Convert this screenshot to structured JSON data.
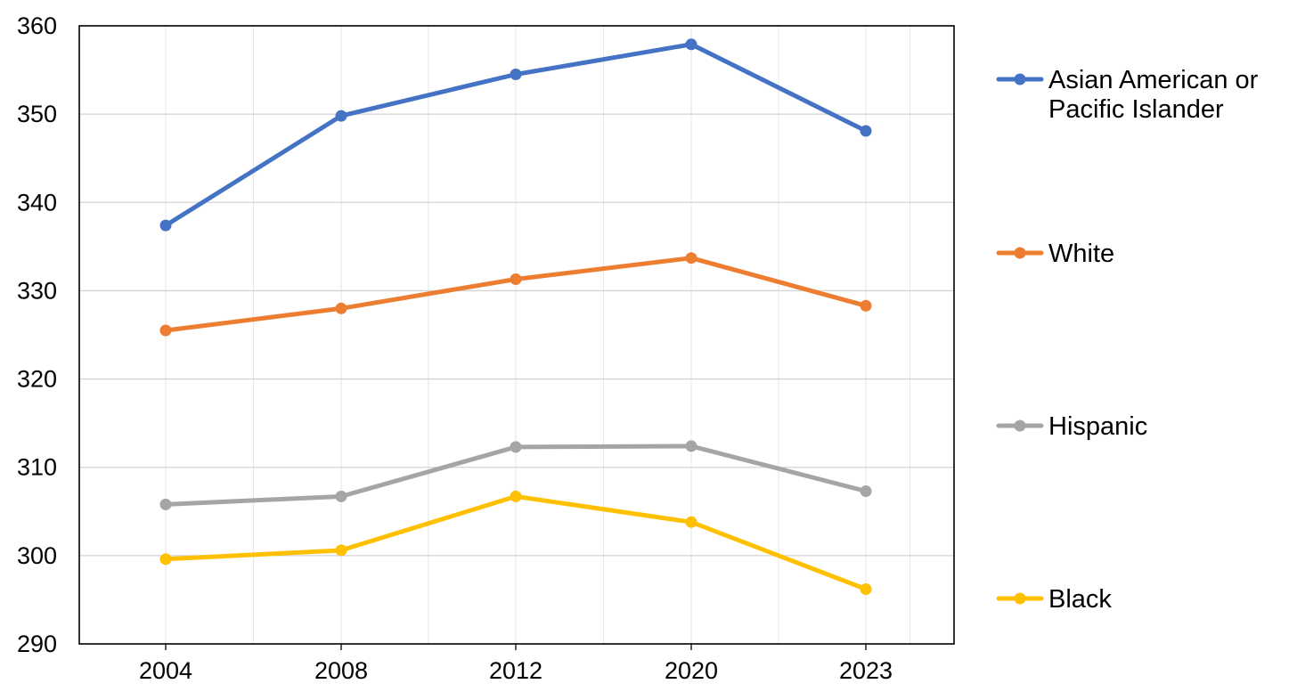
{
  "chart_data": {
    "type": "line",
    "title": "",
    "xlabel": "",
    "ylabel": "",
    "categories": [
      "2004",
      "2008",
      "2012",
      "2020",
      "2023"
    ],
    "ylim": [
      290,
      360
    ],
    "yticks": [
      290,
      300,
      310,
      320,
      330,
      340,
      350,
      360
    ],
    "grid": "horizontal and vertical, light gray",
    "legend_position": "right",
    "series": [
      {
        "name": "Asian American or Pacific Islander",
        "legend_lines": [
          "Asian American or",
          "Pacific Islander"
        ],
        "color": "#4472c4",
        "values": [
          337.4,
          349.8,
          354.5,
          357.9,
          348.1
        ]
      },
      {
        "name": "White",
        "legend_lines": [
          "White"
        ],
        "color": "#ed7d31",
        "values": [
          325.5,
          328.0,
          331.3,
          333.7,
          328.3
        ]
      },
      {
        "name": "Hispanic",
        "legend_lines": [
          "Hispanic"
        ],
        "color": "#a5a5a5",
        "values": [
          305.8,
          306.7,
          312.3,
          312.4,
          307.3
        ]
      },
      {
        "name": "Black",
        "legend_lines": [
          "Black"
        ],
        "color": "#ffc000",
        "values": [
          299.6,
          300.6,
          306.7,
          303.8,
          296.2
        ]
      }
    ]
  }
}
